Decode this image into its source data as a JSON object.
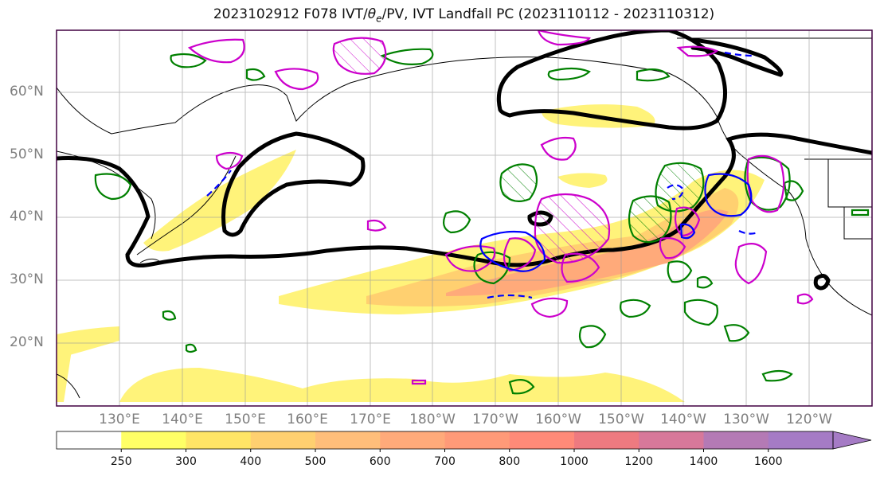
{
  "title": "2023102912 F078 IVT/θe/PV, IVT Landfall PC (2023110112 - 2023110312)",
  "lat_labels": [
    "60°N",
    "50°N",
    "40°N",
    "30°N",
    "20°N"
  ],
  "lon_labels": [
    "130°E",
    "140°E",
    "150°E",
    "160°E",
    "170°E",
    "180°W",
    "170°W",
    "160°W",
    "150°W",
    "140°W",
    "130°W",
    "120°W"
  ],
  "colorbar": {
    "ticks": [
      "250",
      "300",
      "400",
      "500",
      "600",
      "700",
      "800",
      "1000",
      "1200",
      "1400",
      "1600"
    ],
    "colors": [
      "#ffffff",
      "#ffff66",
      "#ffe566",
      "#ffd070",
      "#ffbe7a",
      "#ffaa7a",
      "#ff9a78",
      "#ff8a78",
      "#ee7a80",
      "#d7789a",
      "#b47ab5",
      "#a57bc5"
    ]
  },
  "colors": {
    "pv_contour": "#008000",
    "theta_e_contour": "#0000ff",
    "ivt_pc_contour": "#cc00cc",
    "thick_contour": "#000000",
    "coastline": "#000000",
    "grid": "#999999"
  }
}
